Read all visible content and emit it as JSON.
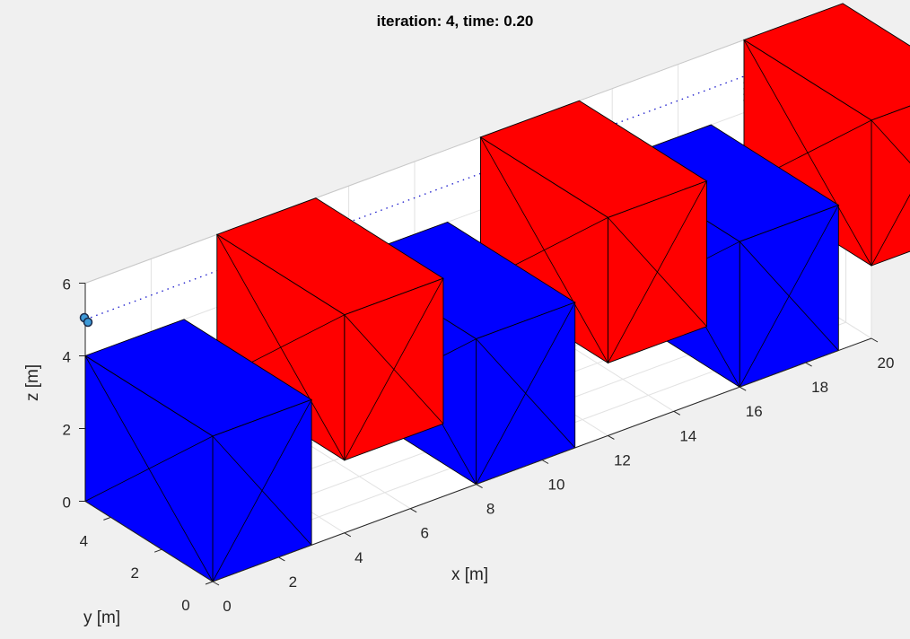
{
  "window": {
    "title": "iteration: 4, time: 0.20"
  },
  "chart_data": {
    "type": "3d-bar",
    "title": "iteration: 4, time: 0.20",
    "xlabel": "x [m]",
    "ylabel": "y [m]",
    "zlabel": "z [m]",
    "xlim": [
      0,
      20
    ],
    "ylim": [
      0,
      5
    ],
    "zlim": [
      0,
      6
    ],
    "x_ticks": [
      "0",
      "2",
      "4",
      "6",
      "8",
      "10",
      "12",
      "14",
      "16",
      "18",
      "20"
    ],
    "y_ticks": [
      "0",
      "2",
      "4"
    ],
    "z_ticks": [
      "0",
      "2",
      "4",
      "6"
    ],
    "grid": true,
    "colors": {
      "blue": "#0000ff",
      "red": "#ff0000",
      "agent": "#3d9ad8"
    },
    "obstacles": [
      {
        "color": "blue",
        "x": [
          0,
          3
        ],
        "y": [
          0,
          5
        ],
        "z": [
          0,
          4
        ]
      },
      {
        "color": "red",
        "x": [
          4,
          7
        ],
        "y": [
          0,
          5
        ],
        "z": [
          2,
          6
        ]
      },
      {
        "color": "blue",
        "x": [
          8,
          11
        ],
        "y": [
          0,
          5
        ],
        "z": [
          0,
          4
        ]
      },
      {
        "color": "red",
        "x": [
          12,
          15
        ],
        "y": [
          0,
          5
        ],
        "z": [
          2,
          6
        ]
      },
      {
        "color": "blue",
        "x": [
          16,
          19
        ],
        "y": [
          0,
          5
        ],
        "z": [
          0,
          4
        ]
      },
      {
        "color": "red",
        "x": [
          20,
          23
        ],
        "y": [
          0,
          5
        ],
        "z": [
          2,
          6
        ]
      }
    ],
    "agent": {
      "x": 0,
      "y": 5,
      "z": 5
    },
    "trajectory": [
      {
        "x": [
          0,
          20
        ],
        "y": [
          5,
          5
        ],
        "z": [
          5,
          5
        ]
      }
    ]
  }
}
